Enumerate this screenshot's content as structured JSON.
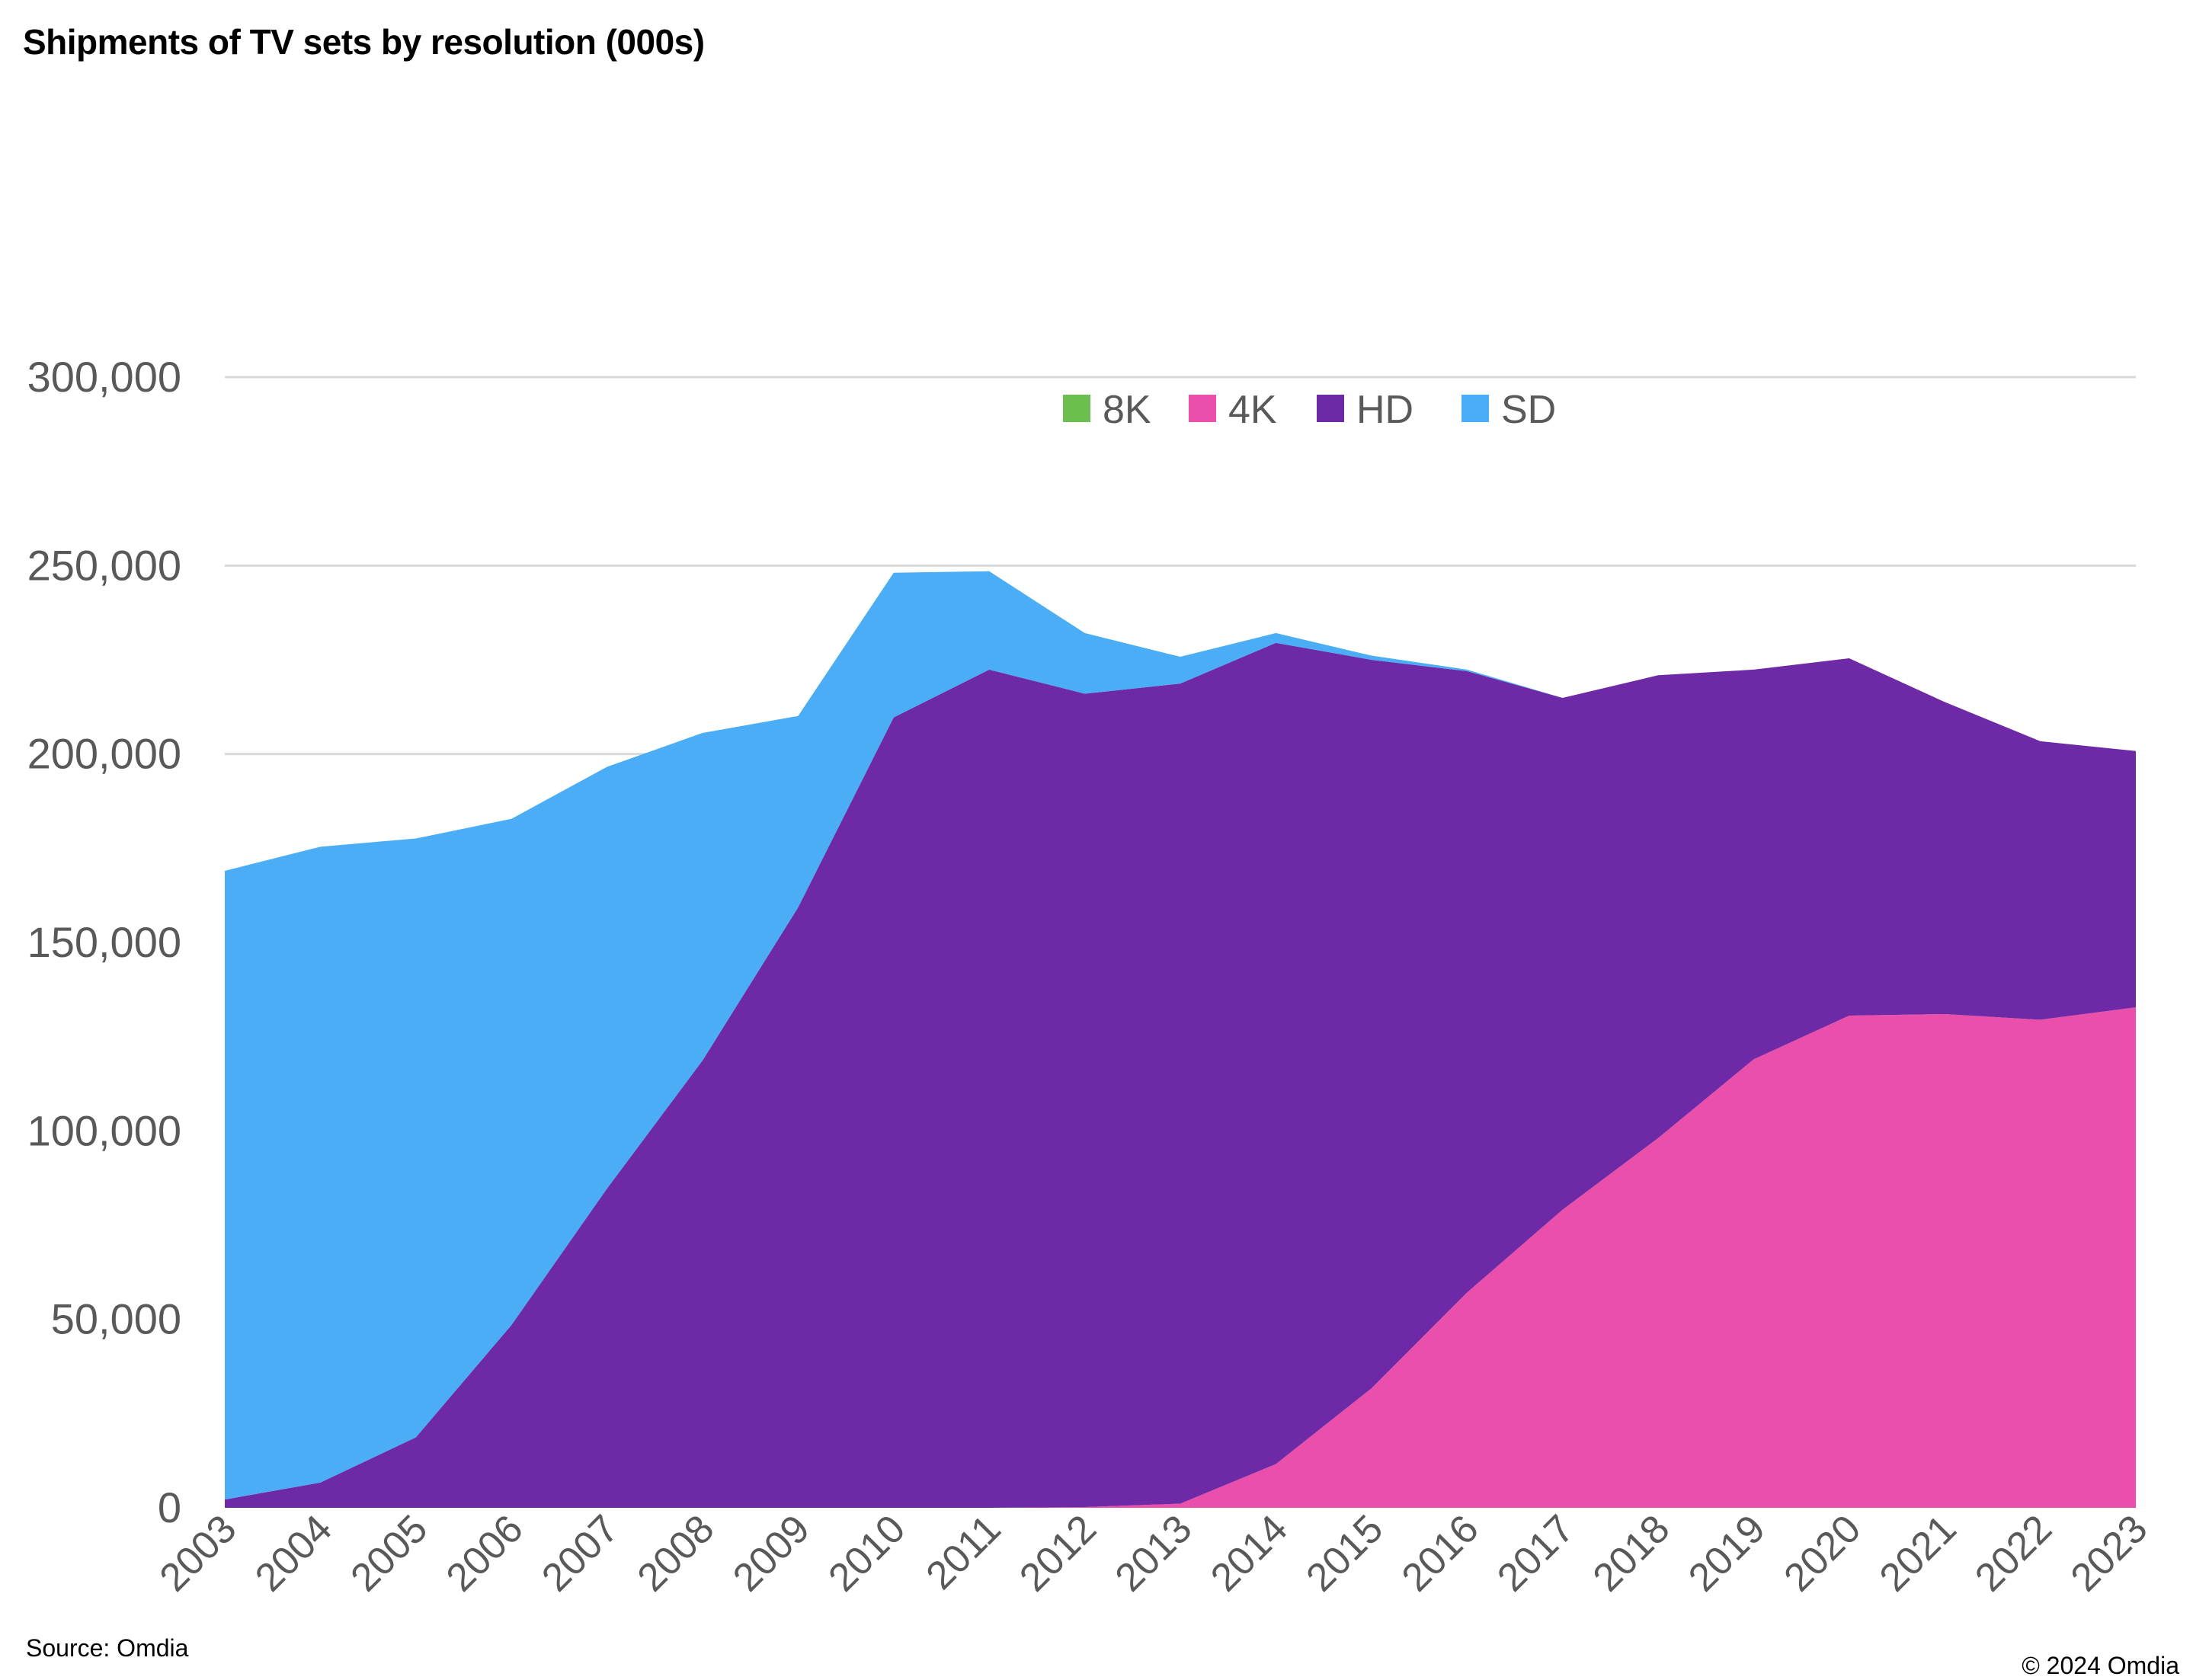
{
  "chart_data": {
    "type": "area",
    "stacked": true,
    "title": "Shipments of TV sets by resolution (000s)",
    "xlabel": "",
    "ylabel": "",
    "ylim": [
      0,
      300000
    ],
    "yticks": [
      "0",
      "50,000",
      "100,000",
      "150,000",
      "200,000",
      "250,000",
      "300,000"
    ],
    "ytick_values": [
      0,
      50000,
      100000,
      150000,
      200000,
      250000,
      300000
    ],
    "grid": true,
    "legend_position": "top-center",
    "categories": [
      "2003",
      "2004",
      "2005",
      "2006",
      "2007",
      "2008",
      "2009",
      "2010",
      "2011",
      "2012",
      "2013",
      "2014",
      "2015",
      "2016",
      "2017",
      "2018",
      "2019",
      "2020",
      "2021",
      "2022",
      "2023"
    ],
    "series": [
      {
        "name": "4K",
        "color": "#E94FAB",
        "values": [
          0,
          0,
          0,
          0,
          0,
          0,
          0,
          0,
          0,
          200,
          1100,
          11600,
          31700,
          57100,
          79100,
          98100,
          119000,
          130600,
          131000,
          129500,
          132800
        ]
      },
      {
        "name": "HD",
        "color": "#6E2AA6",
        "values": [
          2200,
          6700,
          18700,
          48500,
          84700,
          118700,
          159300,
          209700,
          222400,
          215800,
          217600,
          217900,
          193300,
          164900,
          135800,
          122800,
          103400,
          94800,
          82800,
          73900,
          68000
        ]
      },
      {
        "name": "SD",
        "color": "#4AADF5",
        "values": [
          166800,
          168700,
          158900,
          134300,
          111900,
          86900,
          50800,
          38400,
          26100,
          16100,
          7100,
          2600,
          1100,
          400,
          0,
          0,
          0,
          0,
          0,
          0,
          0
        ]
      },
      {
        "name": "8K",
        "color": "#6BBF4E",
        "values": [
          0,
          0,
          0,
          0,
          0,
          0,
          0,
          0,
          0,
          0,
          0,
          0,
          0,
          0,
          0,
          0,
          0,
          0,
          0,
          0,
          0
        ]
      }
    ],
    "legend_order": [
      "8K",
      "4K",
      "HD",
      "SD"
    ]
  },
  "footer": {
    "source": "Source: Omdia",
    "copyright": "© 2024 Omdia"
  }
}
